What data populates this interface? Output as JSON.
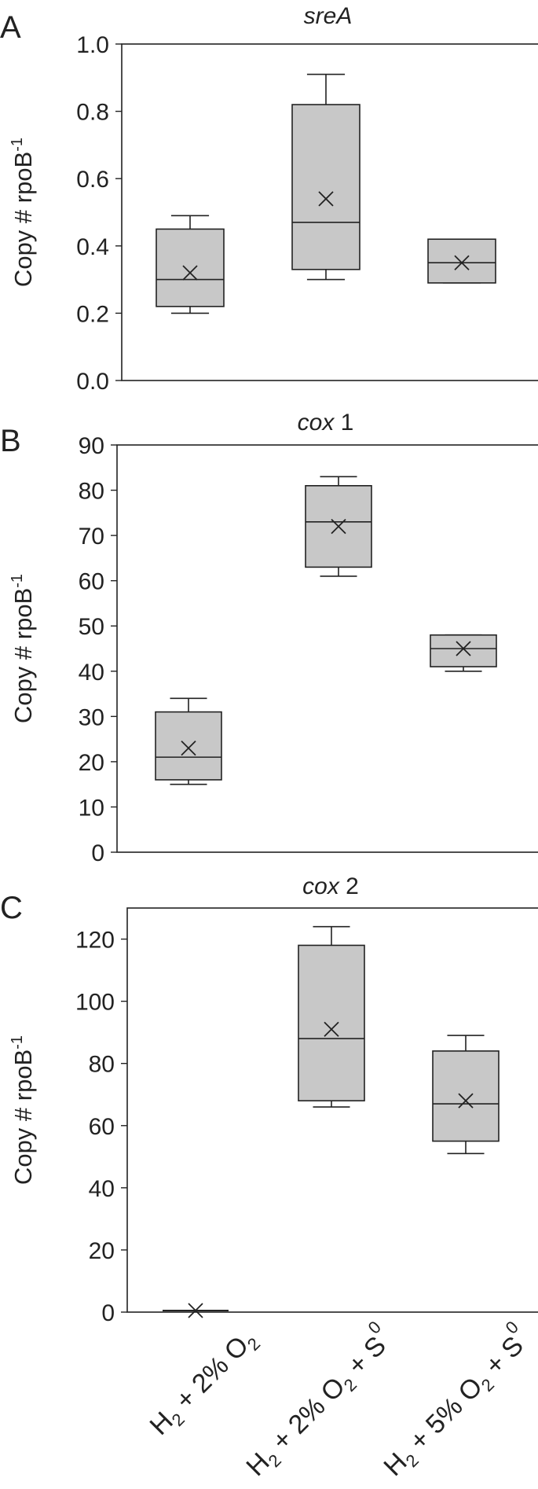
{
  "figure": {
    "categories": [
      {
        "main": "H",
        "sub": "2",
        "text1": " + 2% O",
        "sub2": "2",
        "text2": "",
        "sup": ""
      },
      {
        "main": "H",
        "sub": "2",
        "text1": " + 2% O",
        "sub2": "2",
        "text2": " + S",
        "sup": "0"
      },
      {
        "main": "H",
        "sub": "2",
        "text1": " + 5% O",
        "sub2": "2",
        "text2": " + S",
        "sup": "0"
      }
    ]
  },
  "chart_data": [
    {
      "type": "box",
      "panel": "A",
      "title": "sreA",
      "title_italic_part": "sreA",
      "title_plain_part": "",
      "ylabel": "Copy # rpoB",
      "ylabel_sup": "-1",
      "ylim": [
        0,
        1.0
      ],
      "yticks": [
        "0.0",
        "0.2",
        "0.4",
        "0.6",
        "0.8",
        "1.0"
      ],
      "ytick_values": [
        0,
        0.2,
        0.4,
        0.6,
        0.8,
        1.0
      ],
      "categories": [
        "H2 + 2% O2",
        "H2 + 2% O2 + S0",
        "H2 + 5% O2 + S0"
      ],
      "boxes": [
        {
          "min": 0.2,
          "q1": 0.22,
          "median": 0.3,
          "q3": 0.45,
          "max": 0.49,
          "mean": 0.32
        },
        {
          "min": 0.3,
          "q1": 0.33,
          "median": 0.47,
          "q3": 0.82,
          "max": 0.91,
          "mean": 0.54
        },
        {
          "min": 0.29,
          "q1": 0.29,
          "median": 0.35,
          "q3": 0.42,
          "max": 0.42,
          "mean": 0.35
        }
      ]
    },
    {
      "type": "box",
      "panel": "B",
      "title": "cox 1",
      "title_italic_part": "cox",
      "title_plain_part": " 1",
      "ylabel": "Copy # rpoB",
      "ylabel_sup": "-1",
      "ylim": [
        0,
        90
      ],
      "yticks": [
        "0",
        "10",
        "20",
        "30",
        "40",
        "50",
        "60",
        "70",
        "80",
        "90"
      ],
      "ytick_values": [
        0,
        10,
        20,
        30,
        40,
        50,
        60,
        70,
        80,
        90
      ],
      "categories": [
        "H2 + 2% O2",
        "H2 + 2% O2 + S0",
        "H2 + 5% O2 + S0"
      ],
      "boxes": [
        {
          "min": 15,
          "q1": 16,
          "median": 21,
          "q3": 31,
          "max": 34,
          "mean": 23
        },
        {
          "min": 61,
          "q1": 63,
          "median": 73,
          "q3": 81,
          "max": 83,
          "mean": 72
        },
        {
          "min": 40,
          "q1": 41,
          "median": 45,
          "q3": 48,
          "max": 48,
          "mean": 45
        }
      ]
    },
    {
      "type": "box",
      "panel": "C",
      "title": "cox 2",
      "title_italic_part": "cox",
      "title_plain_part": " 2",
      "ylabel": "Copy # rpoB",
      "ylabel_sup": "-1",
      "ylim": [
        0,
        130
      ],
      "yticks": [
        "0",
        "20",
        "40",
        "60",
        "80",
        "100",
        "120"
      ],
      "ytick_values": [
        0,
        20,
        40,
        60,
        80,
        100,
        120
      ],
      "categories": [
        "H2 + 2% O2",
        "H2 + 2% O2 + S0",
        "H2 + 5% O2 + S0"
      ],
      "boxes": [
        {
          "min": 0.5,
          "q1": 0.5,
          "median": 0.5,
          "q3": 0.5,
          "max": 0.5,
          "mean": 0.5
        },
        {
          "min": 66,
          "q1": 68,
          "median": 88,
          "q3": 118,
          "max": 124,
          "mean": 91
        },
        {
          "min": 51,
          "q1": 55,
          "median": 67,
          "q3": 84,
          "max": 89,
          "mean": 68
        }
      ]
    }
  ],
  "style": {
    "box_fill": "#c8c8c8",
    "stroke": "#222222"
  }
}
